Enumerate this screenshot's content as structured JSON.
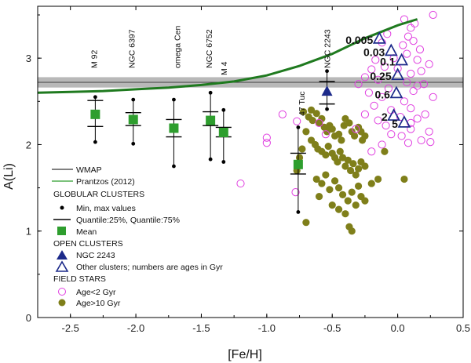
{
  "chart_data": {
    "type": "scatter",
    "xlabel": "[Fe/H]",
    "ylabel": "A(Li)",
    "xlim": [
      -2.75,
      0.5
    ],
    "ylim": [
      0,
      3.6
    ],
    "xticks": [
      -2.5,
      -2.0,
      -1.5,
      -1.0,
      -0.5,
      0.0,
      0.5
    ],
    "xtick_labels": [
      "-2.5",
      "-2.0",
      "-1.5",
      "-1.0",
      "-0.5",
      "0.0",
      "0.5"
    ],
    "yticks": [
      0,
      1,
      2,
      3
    ],
    "ytick_labels": [
      "0",
      "1",
      "2",
      "3"
    ],
    "wmap": {
      "name": "WMAP",
      "value": 2.72,
      "band": [
        2.66,
        2.78
      ],
      "color": "#808080"
    },
    "prantzos": {
      "name": "Prantzos (2012)",
      "color": "#1f7a1f",
      "x": [
        -2.75,
        -2.5,
        -2.25,
        -2.0,
        -1.75,
        -1.5,
        -1.25,
        -1.0,
        -0.75,
        -0.5,
        -0.25,
        0.0,
        0.15
      ],
      "y": [
        2.6,
        2.61,
        2.62,
        2.64,
        2.66,
        2.69,
        2.73,
        2.8,
        2.91,
        3.05,
        3.23,
        3.38,
        3.45
      ]
    },
    "globular_clusters": [
      {
        "name": "M 92",
        "feh": -2.31,
        "mean": 2.35,
        "q25": 2.21,
        "q75": 2.51,
        "min": 2.03,
        "max": 2.55
      },
      {
        "name": "NGC 6397",
        "feh": -2.02,
        "mean": 2.29,
        "q25": 2.22,
        "q75": 2.37,
        "min": 2.01,
        "max": 2.52
      },
      {
        "name": "omega Cen",
        "feh": -1.71,
        "mean": 2.19,
        "q25": 2.09,
        "q75": 2.29,
        "min": 1.75,
        "max": 2.52
      },
      {
        "name": "NGC 6752",
        "feh": -1.43,
        "mean": 2.28,
        "q25": 2.22,
        "q75": 2.38,
        "min": 1.83,
        "max": 2.6
      },
      {
        "name": "M 4",
        "feh": -1.33,
        "mean": 2.14,
        "q25": 2.09,
        "q75": 2.2,
        "min": 1.8,
        "max": 2.4
      },
      {
        "name": "47 Tuc",
        "feh": -0.76,
        "mean": 1.77,
        "q25": 1.66,
        "q75": 1.9,
        "min": 1.22,
        "max": 2.2
      }
    ],
    "ngc2243": {
      "name": "NGC 2243",
      "feh": -0.54,
      "value": 2.61,
      "q25": 2.47,
      "q75": 2.73,
      "min": 2.41,
      "max": 2.85
    },
    "open_clusters": [
      {
        "age": "0.005",
        "feh": -0.14,
        "value": 3.22
      },
      {
        "age": "0.03",
        "feh": -0.05,
        "value": 3.08
      },
      {
        "age": "0.1",
        "feh": 0.03,
        "value": 2.97
      },
      {
        "age": "0.25",
        "feh": 0.0,
        "value": 2.8
      },
      {
        "age": "0.6",
        "feh": -0.01,
        "value": 2.59
      },
      {
        "age": "2",
        "feh": -0.03,
        "value": 2.33
      },
      {
        "age": "5",
        "feh": 0.05,
        "value": 2.25
      }
    ],
    "field_young": {
      "name": "Age<2 Gyr",
      "color": "#e040e0",
      "points": [
        [
          0.27,
          3.5
        ],
        [
          0.13,
          3.4
        ],
        [
          0.1,
          3.35
        ],
        [
          0.05,
          3.45
        ],
        [
          0.08,
          3.25
        ],
        [
          0.12,
          3.2
        ],
        [
          0.04,
          3.15
        ],
        [
          -0.08,
          3.28
        ],
        [
          -0.12,
          3.18
        ],
        [
          0.17,
          3.1
        ],
        [
          0.07,
          3.05
        ],
        [
          -0.03,
          3.0
        ],
        [
          0.15,
          2.98
        ],
        [
          -0.17,
          2.98
        ],
        [
          -0.1,
          2.9
        ],
        [
          0.0,
          2.88
        ],
        [
          0.18,
          2.85
        ],
        [
          0.1,
          2.82
        ],
        [
          0.24,
          2.93
        ],
        [
          -0.2,
          2.87
        ],
        [
          -0.25,
          2.78
        ],
        [
          -0.15,
          2.75
        ],
        [
          0.07,
          2.72
        ],
        [
          0.2,
          2.7
        ],
        [
          0.15,
          2.68
        ],
        [
          -0.07,
          2.65
        ],
        [
          -0.3,
          2.7
        ],
        [
          -0.22,
          2.6
        ],
        [
          0.12,
          2.62
        ],
        [
          0.27,
          2.55
        ],
        [
          -0.12,
          2.55
        ],
        [
          0.05,
          2.5
        ],
        [
          -0.18,
          2.45
        ],
        [
          0.1,
          2.42
        ],
        [
          -0.05,
          2.4
        ],
        [
          0.21,
          2.35
        ],
        [
          -0.25,
          2.35
        ],
        [
          0.02,
          2.32
        ],
        [
          0.15,
          2.3
        ],
        [
          -0.15,
          2.28
        ],
        [
          -0.09,
          2.22
        ],
        [
          0.1,
          2.18
        ],
        [
          0.24,
          2.15
        ],
        [
          -0.05,
          2.12
        ],
        [
          0.03,
          2.1
        ],
        [
          0.18,
          2.05
        ],
        [
          -0.12,
          2.0
        ],
        [
          0.08,
          2.02
        ],
        [
          0.25,
          2.03
        ],
        [
          -0.2,
          1.92
        ],
        [
          -0.32,
          2.18
        ],
        [
          -0.55,
          2.12
        ],
        [
          -0.88,
          2.35
        ],
        [
          -0.77,
          2.27
        ],
        [
          -0.6,
          2.25
        ],
        [
          -1.0,
          2.08
        ],
        [
          -1.0,
          2.02
        ],
        [
          -0.78,
          1.45
        ],
        [
          -1.2,
          1.55
        ],
        [
          0.1,
          2.25
        ]
      ]
    },
    "field_old": {
      "name": "Age>10 Gyr",
      "color": "#7f7f1a",
      "points": [
        [
          -0.72,
          2.38
        ],
        [
          -0.68,
          2.32
        ],
        [
          -0.65,
          2.28
        ],
        [
          -0.62,
          2.36
        ],
        [
          -0.6,
          2.25
        ],
        [
          -0.58,
          2.3
        ],
        [
          -0.56,
          2.2
        ],
        [
          -0.54,
          2.15
        ],
        [
          -0.52,
          2.22
        ],
        [
          -0.5,
          2.18
        ],
        [
          -0.48,
          2.1
        ],
        [
          -0.45,
          2.12
        ],
        [
          -0.43,
          2.05
        ],
        [
          -0.41,
          2.22
        ],
        [
          -0.4,
          2.3
        ],
        [
          -0.37,
          2.25
        ],
        [
          -0.35,
          2.15
        ],
        [
          -0.33,
          2.1
        ],
        [
          -0.3,
          2.2
        ],
        [
          -0.28,
          2.15
        ],
        [
          -0.27,
          2.05
        ],
        [
          -0.25,
          2.1
        ],
        [
          -0.7,
          2.15
        ],
        [
          -0.66,
          2.05
        ],
        [
          -0.63,
          2.0
        ],
        [
          -0.61,
          1.95
        ],
        [
          -0.58,
          1.92
        ],
        [
          -0.55,
          1.88
        ],
        [
          -0.53,
          1.98
        ],
        [
          -0.5,
          1.9
        ],
        [
          -0.48,
          1.85
        ],
        [
          -0.46,
          1.8
        ],
        [
          -0.44,
          1.92
        ],
        [
          -0.42,
          1.85
        ],
        [
          -0.4,
          1.75
        ],
        [
          -0.38,
          1.82
        ],
        [
          -0.36,
          1.7
        ],
        [
          -0.34,
          1.78
        ],
        [
          -0.32,
          1.65
        ],
        [
          -0.3,
          1.72
        ],
        [
          -0.28,
          1.8
        ],
        [
          -0.25,
          1.75
        ],
        [
          -0.73,
          1.95
        ],
        [
          -0.75,
          1.85
        ],
        [
          -0.77,
          1.7
        ],
        [
          -0.62,
          1.6
        ],
        [
          -0.58,
          1.55
        ],
        [
          -0.55,
          1.65
        ],
        [
          -0.52,
          1.48
        ],
        [
          -0.48,
          1.58
        ],
        [
          -0.45,
          1.5
        ],
        [
          -0.42,
          1.42
        ],
        [
          -0.38,
          1.35
        ],
        [
          -0.35,
          1.45
        ],
        [
          -0.32,
          1.3
        ],
        [
          -0.3,
          1.52
        ],
        [
          -0.28,
          1.4
        ],
        [
          -0.6,
          1.4
        ],
        [
          -0.5,
          1.3
        ],
        [
          -0.45,
          1.25
        ],
        [
          -0.4,
          1.2
        ],
        [
          -0.37,
          1.05
        ],
        [
          -0.7,
          1.1
        ],
        [
          -0.35,
          1.0
        ],
        [
          -0.2,
          1.55
        ],
        [
          -0.15,
          1.6
        ],
        [
          0.05,
          1.6
        ],
        [
          -0.25,
          1.35
        ],
        [
          -0.1,
          1.92
        ],
        [
          -0.66,
          2.4
        ]
      ]
    },
    "legend": {
      "wmap": "WMAP",
      "prantzos": "Prantzos (2012)",
      "gc_header": "GLOBULAR CLUSTERS",
      "minmax": "Min, max values",
      "quantile": "Quantile:25%, Quantile:75%",
      "mean": "Mean",
      "oc_header": "OPEN CLUSTERS",
      "ngc2243": "NGC 2243",
      "other_oc": "Other clusters; numbers are ages in Gyr",
      "fs_header": "FIELD STARS",
      "young": "Age<2 Gyr",
      "old": "Age>10 Gyr"
    },
    "colors": {
      "gc_marker": "#2e9e2e",
      "oc_marker": "#1c2a8a",
      "axis": "#000000"
    }
  }
}
